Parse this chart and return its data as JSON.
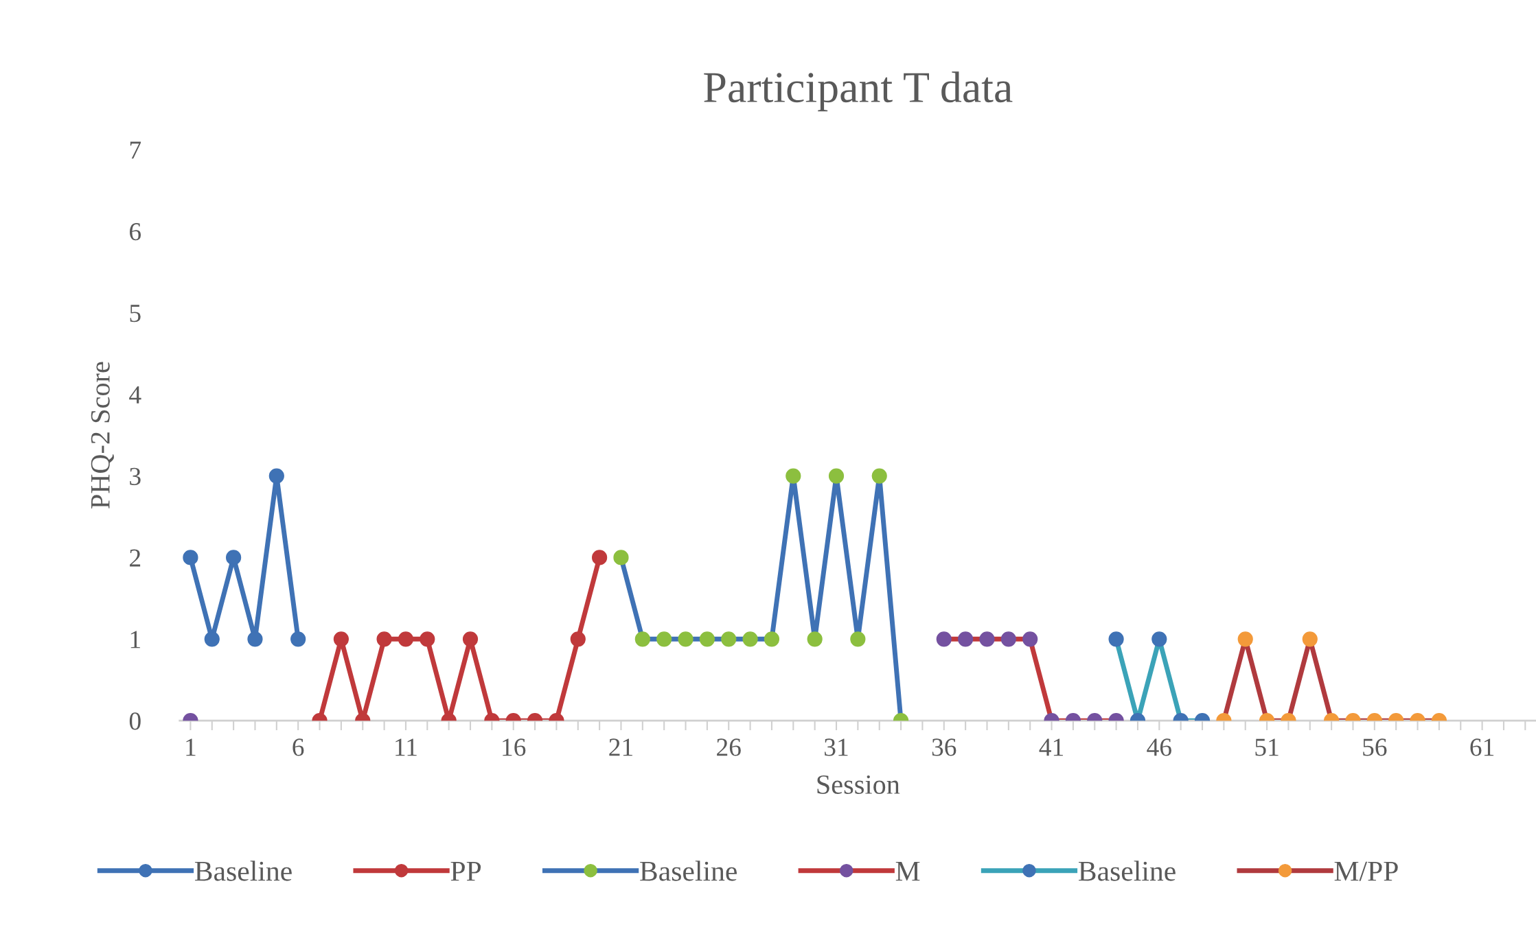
{
  "chart_data": {
    "type": "line",
    "title": "Participant T data",
    "xlabel": "Session",
    "ylabel": "PHQ-2 Score",
    "xlim": [
      0.5,
      63.5
    ],
    "ylim": [
      0,
      7
    ],
    "yticks": [
      0,
      1,
      2,
      3,
      4,
      5,
      6,
      7
    ],
    "xticks": [
      1,
      {
        "value": 2,
        "label": null
      },
      {
        "value": 3,
        "label": null
      },
      {
        "value": 4,
        "label": null
      },
      {
        "value": 5,
        "label": null
      },
      6,
      {
        "value": 7,
        "label": null
      },
      {
        "value": 8,
        "label": null
      },
      {
        "value": 9,
        "label": null
      },
      {
        "value": 10,
        "label": null
      },
      11,
      {
        "value": 12,
        "label": null
      },
      {
        "value": 13,
        "label": null
      },
      {
        "value": 14,
        "label": null
      },
      {
        "value": 15,
        "label": null
      },
      16,
      {
        "value": 17,
        "label": null
      },
      {
        "value": 18,
        "label": null
      },
      {
        "value": 19,
        "label": null
      },
      {
        "value": 20,
        "label": null
      },
      21,
      {
        "value": 22,
        "label": null
      },
      {
        "value": 23,
        "label": null
      },
      {
        "value": 24,
        "label": null
      },
      {
        "value": 25,
        "label": null
      },
      26,
      {
        "value": 27,
        "label": null
      },
      {
        "value": 28,
        "label": null
      },
      {
        "value": 29,
        "label": null
      },
      {
        "value": 30,
        "label": null
      },
      31,
      {
        "value": 32,
        "label": null
      },
      {
        "value": 33,
        "label": null
      },
      {
        "value": 34,
        "label": null
      },
      {
        "value": 35,
        "label": null
      },
      36,
      {
        "value": 37,
        "label": null
      },
      {
        "value": 38,
        "label": null
      },
      {
        "value": 39,
        "label": null
      },
      {
        "value": 40,
        "label": null
      },
      41,
      {
        "value": 42,
        "label": null
      },
      {
        "value": 43,
        "label": null
      },
      {
        "value": 44,
        "label": null
      },
      {
        "value": 45,
        "label": null
      },
      46,
      {
        "value": 47,
        "label": null
      },
      {
        "value": 48,
        "label": null
      },
      {
        "value": 49,
        "label": null
      },
      {
        "value": 50,
        "label": null
      },
      51,
      {
        "value": 52,
        "label": null
      },
      {
        "value": 53,
        "label": null
      },
      {
        "value": 54,
        "label": null
      },
      {
        "value": 55,
        "label": null
      },
      56,
      {
        "value": 57,
        "label": null
      },
      {
        "value": 58,
        "label": null
      },
      {
        "value": 59,
        "label": null
      },
      {
        "value": 60,
        "label": null
      },
      61,
      {
        "value": 62,
        "label": null
      },
      {
        "value": 63,
        "label": null
      }
    ],
    "grid": false,
    "legend": "bottom",
    "marker": "circle",
    "line_style": "solid",
    "series": [
      {
        "name": "Baseline",
        "color": "#3f72b5",
        "colors": [
          "#3f72b5",
          "#3f72b5",
          "#3f72b5",
          "#3f72b5",
          "#3f72b5",
          "#3f72b5"
        ],
        "x": [
          1,
          2,
          3,
          4,
          5,
          6
        ],
        "values": [
          2,
          1,
          2,
          1,
          3,
          1
        ]
      },
      {
        "name": "PP",
        "color": "#c0393b",
        "colors": [
          "#c0393b",
          "#c0393b",
          "#c0393b",
          "#c0393b",
          "#c0393b",
          "#c0393b",
          "#c0393b",
          "#c0393b",
          "#c0393b",
          "#c0393b",
          "#c0393b",
          "#c0393b",
          "#c0393b",
          "#c0393b"
        ],
        "x": [
          7,
          8,
          9,
          10,
          11,
          12,
          13,
          14,
          15,
          16,
          17,
          18,
          19,
          20
        ],
        "values": [
          0,
          1,
          0,
          1,
          1,
          1,
          0,
          1,
          0,
          0,
          0,
          0,
          1,
          2
        ]
      },
      {
        "name": "Baseline",
        "color": "#3f72b5",
        "colors": [
          "#8cbf3f",
          "#8cbf3f",
          "#8cbf3f",
          "#8cbf3f",
          "#8cbf3f",
          "#8cbf3f",
          "#8cbf3f",
          "#8cbf3f",
          "#8cbf3f",
          "#8cbf3f",
          "#8cbf3f",
          "#8cbf3f",
          "#8cbf3f",
          "#8cbf3f"
        ],
        "x": [
          21,
          22,
          23,
          24,
          25,
          26,
          27,
          28,
          29,
          30,
          31,
          32,
          33,
          34
        ],
        "values": [
          2,
          1,
          1,
          1,
          1,
          1,
          1,
          1,
          3,
          1,
          3,
          1,
          3,
          0
        ]
      },
      {
        "name": "M",
        "color": "#c0393b",
        "colors": [
          "#7451a0",
          "#7451a0",
          "#7451a0",
          "#7451a0",
          "#7451a0",
          "#7451a0",
          "#7451a0",
          "#7451a0",
          "#7451a0",
          "#7451a0",
          "#7451a0"
        ],
        "x": [
          1,
          2,
          36,
          37,
          38,
          39,
          40,
          41,
          42,
          43,
          44
        ],
        "values": [
          0,
          null,
          1,
          1,
          1,
          1,
          1,
          0,
          0,
          0,
          0
        ]
      },
      {
        "name": "Baseline",
        "color": "#3ba3b8",
        "colors": [
          "#3f72b5",
          "#3f72b5",
          "#3f72b5",
          "#3f72b5",
          "#3f72b5"
        ],
        "x": [
          44,
          45,
          46,
          47,
          48
        ],
        "values": [
          1,
          0,
          1,
          0,
          0
        ]
      },
      {
        "name": "M/PP",
        "color": "#b03a3e",
        "colors": [
          "#f39a3a",
          "#f39a3a",
          "#f39a3a",
          "#f39a3a",
          "#f39a3a",
          "#f39a3a",
          "#f39a3a",
          "#f39a3a",
          "#f39a3a",
          "#f39a3a",
          "#f39a3a"
        ],
        "x": [
          49,
          50,
          51,
          52,
          53,
          54,
          55,
          56,
          57,
          58,
          59
        ],
        "values": [
          0,
          1,
          0,
          0,
          1,
          0,
          0,
          0,
          0,
          0,
          0
        ]
      }
    ]
  }
}
